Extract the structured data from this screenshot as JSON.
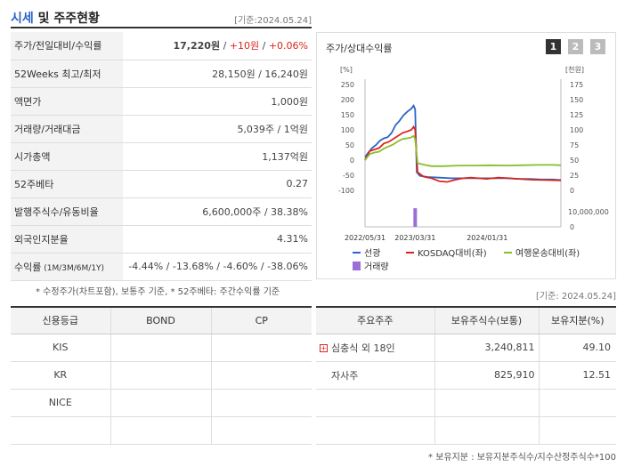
{
  "header": {
    "title_hl": "시세",
    "title_rest": " 및 주주현황",
    "date": "[기준:2024.05.24]"
  },
  "info_rows": [
    {
      "label": "주가/전일대비/수익률",
      "price": "17,220원",
      "sep1": " / ",
      "chg": "+10원",
      "sep2": " / ",
      "ret": "+0.06%"
    },
    {
      "label": "52Weeks 최고/최저",
      "value": "28,150원 / 16,240원"
    },
    {
      "label": "액면가",
      "value": "1,000원"
    },
    {
      "label": "거래량/거래대금",
      "value": "5,039주 / 1억원"
    },
    {
      "label": "시가총액",
      "value": "1,137억원"
    },
    {
      "label": "52주베타",
      "value": "0.27"
    },
    {
      "label": "발행주식수/유동비율",
      "value": "6,600,000주 / 38.38%"
    },
    {
      "label": "외국인지분율",
      "value": "4.31%"
    },
    {
      "label": "수익률",
      "label_sub": " (1M/3M/6M/1Y)",
      "value": "-4.44% / -13.68% / -4.60% / -38.06%"
    }
  ],
  "note1": "* 수정주가(차트포함), 보통주 기준, * 52주베타: 주간수익률 기준",
  "chart": {
    "title": "주가/상대수익률",
    "pages": [
      "1",
      "2",
      "3"
    ],
    "left_unit": "[%]",
    "right_unit": "[천원]",
    "legend": [
      "선광",
      "KOSDAQ대비(좌)",
      "여행운송대비(좌)",
      "거래량"
    ]
  },
  "chart_data": {
    "type": "line",
    "x_ticks": [
      "2022/05/31",
      "2023/03/31",
      "2024/01/31"
    ],
    "y_left_ticks": [
      "250",
      "200",
      "150",
      "100",
      "50",
      "0",
      "-50",
      "-100"
    ],
    "y_right_ticks": [
      "175",
      "150",
      "125",
      "100",
      "75",
      "50",
      "25",
      "0"
    ],
    "volume_ticks": [
      "10,000,000",
      "0"
    ],
    "ylim_left": [
      -100,
      250
    ],
    "ylim_right": [
      0,
      175
    ],
    "series": [
      {
        "name": "선광",
        "axis": "right",
        "color": "#2a64c8",
        "values": [
          [
            0,
            55
          ],
          [
            4,
            62
          ],
          [
            9,
            70
          ],
          [
            14,
            75
          ],
          [
            19,
            82
          ],
          [
            24,
            86
          ],
          [
            29,
            88
          ],
          [
            34,
            95
          ],
          [
            39,
            108
          ],
          [
            44,
            115
          ],
          [
            49,
            124
          ],
          [
            54,
            130
          ],
          [
            59,
            135
          ],
          [
            62,
            140
          ],
          [
            64,
            134
          ],
          [
            66,
            30
          ],
          [
            70,
            24
          ],
          [
            80,
            22
          ],
          [
            95,
            21
          ],
          [
            110,
            20
          ],
          [
            125,
            20
          ],
          [
            140,
            20
          ],
          [
            160,
            20
          ],
          [
            180,
            20
          ],
          [
            195,
            19
          ],
          [
            210,
            19
          ],
          [
            225,
            18
          ],
          [
            240,
            18
          ],
          [
            250,
            17
          ]
        ]
      },
      {
        "name": "KOSDAQ대비(좌)",
        "axis": "left",
        "color": "#d9261c",
        "values": [
          [
            0,
            0
          ],
          [
            6,
            30
          ],
          [
            12,
            35
          ],
          [
            18,
            40
          ],
          [
            24,
            55
          ],
          [
            30,
            60
          ],
          [
            36,
            70
          ],
          [
            42,
            80
          ],
          [
            48,
            90
          ],
          [
            54,
            95
          ],
          [
            59,
            100
          ],
          [
            62,
            110
          ],
          [
            64,
            100
          ],
          [
            67,
            -40
          ],
          [
            75,
            -55
          ],
          [
            85,
            -60
          ],
          [
            95,
            -70
          ],
          [
            105,
            -72
          ],
          [
            115,
            -65
          ],
          [
            125,
            -60
          ],
          [
            135,
            -58
          ],
          [
            145,
            -60
          ],
          [
            155,
            -62
          ],
          [
            170,
            -58
          ],
          [
            185,
            -60
          ],
          [
            200,
            -63
          ],
          [
            215,
            -65
          ],
          [
            230,
            -66
          ],
          [
            250,
            -67
          ]
        ]
      },
      {
        "name": "여행운송대비(좌)",
        "axis": "left",
        "color": "#8bbd2d",
        "values": [
          [
            0,
            0
          ],
          [
            6,
            20
          ],
          [
            12,
            25
          ],
          [
            18,
            28
          ],
          [
            24,
            38
          ],
          [
            30,
            45
          ],
          [
            36,
            52
          ],
          [
            42,
            62
          ],
          [
            48,
            70
          ],
          [
            54,
            72
          ],
          [
            59,
            75
          ],
          [
            62,
            80
          ],
          [
            64,
            70
          ],
          [
            67,
            -10
          ],
          [
            75,
            -15
          ],
          [
            85,
            -20
          ],
          [
            100,
            -20
          ],
          [
            120,
            -18
          ],
          [
            140,
            -18
          ],
          [
            160,
            -17
          ],
          [
            180,
            -18
          ],
          [
            200,
            -17
          ],
          [
            220,
            -16
          ],
          [
            240,
            -16
          ],
          [
            250,
            -17
          ]
        ]
      }
    ],
    "volume": [
      {
        "x": 64,
        "value": 9500000
      }
    ],
    "volume_lim": [
      0,
      10000000
    ],
    "grid": false,
    "legend_position": "bottom"
  },
  "credit": {
    "date": "[기준: 2024.05.24]",
    "headers": [
      "신용등급",
      "BOND",
      "CP"
    ],
    "rows": [
      [
        "KIS",
        "",
        ""
      ],
      [
        "KR",
        "",
        ""
      ],
      [
        "NICE",
        "",
        ""
      ],
      [
        "",
        "",
        ""
      ]
    ]
  },
  "holders": {
    "headers": [
      "주요주주",
      "보유주식수(보통)",
      "보유지분(%)"
    ],
    "rows": [
      [
        "심충식 외 18인",
        "3,240,811",
        "49.10"
      ],
      [
        "자사주",
        "825,910",
        "12.51"
      ],
      [
        "",
        "",
        ""
      ],
      [
        "",
        "",
        ""
      ]
    ]
  },
  "note2": "* 보유지분 : 보유지분주식수/지수산정주식수*100"
}
